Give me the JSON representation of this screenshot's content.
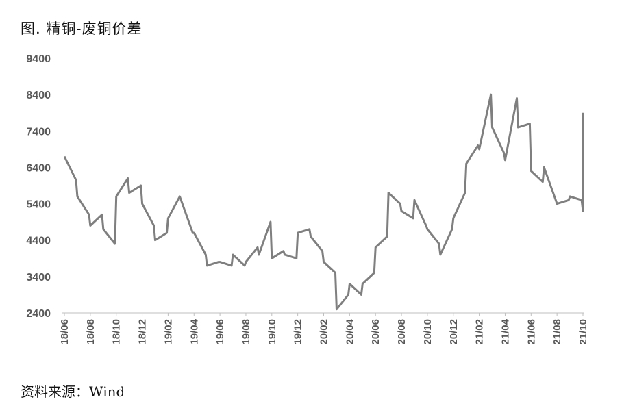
{
  "header": {
    "title": "图. 精铜-废铜价差"
  },
  "footer": {
    "source": "资料来源：Wind"
  },
  "chart_data": {
    "type": "line",
    "title": "图. 精铜-废铜价差",
    "xlabel": "",
    "ylabel": "",
    "ylim": [
      2400,
      9400
    ],
    "yticks": [
      2400,
      3400,
      4400,
      5400,
      6400,
      7400,
      8400,
      9400
    ],
    "xticks": [
      "18/06",
      "18/08",
      "18/10",
      "18/12",
      "19/02",
      "19/04",
      "19/06",
      "19/08",
      "19/10",
      "19/12",
      "20/02",
      "20/04",
      "20/06",
      "20/08",
      "20/10",
      "20/12",
      "21/02",
      "21/04",
      "21/06",
      "21/08",
      "21/10"
    ],
    "grid": false,
    "legend": "none",
    "line_color": "#7f7f7f",
    "series": [
      {
        "x": [
          "18/06",
          "18/06",
          "18/07",
          "18/07",
          "18/08",
          "18/08",
          "18/09",
          "18/09",
          "18/10",
          "18/10",
          "18/11",
          "18/11",
          "18/12",
          "18/12",
          "19/01",
          "19/01",
          "19/02",
          "19/02",
          "19/03",
          "19/03",
          "19/04",
          "19/04",
          "19/05",
          "19/05",
          "19/06",
          "19/06",
          "19/07",
          "19/07",
          "19/08",
          "19/08",
          "19/09",
          "19/09",
          "19/10",
          "19/10",
          "19/11",
          "19/11",
          "19/12",
          "19/12",
          "20/01",
          "20/01",
          "20/02",
          "20/02",
          "20/03",
          "20/03",
          "20/04",
          "20/04",
          "20/05",
          "20/05",
          "20/06",
          "20/06",
          "20/07",
          "20/07",
          "20/08",
          "20/08",
          "20/09",
          "20/09",
          "20/10",
          "20/10",
          "20/11",
          "20/11",
          "20/12",
          "20/12",
          "21/01",
          "21/01",
          "21/02",
          "21/02",
          "21/03",
          "21/03",
          "21/04",
          "21/04",
          "21/05",
          "21/05",
          "21/06",
          "21/06",
          "21/07",
          "21/07",
          "21/08",
          "21/08",
          "21/09",
          "21/09",
          "21/10",
          "21/10"
        ],
        "values": [
          6700,
          6050,
          5600,
          5100,
          4800,
          5100,
          4700,
          4300,
          5600,
          6100,
          5700,
          5900,
          5400,
          4800,
          4400,
          4600,
          5000,
          5600,
          5500,
          4600,
          4600,
          4000,
          3700,
          3800,
          3800,
          3700,
          4000,
          3700,
          3800,
          4200,
          4000,
          4900,
          3900,
          4100,
          4000,
          3900,
          4600,
          4700,
          4500,
          4100,
          3800,
          3500,
          2500,
          2900,
          3200,
          2900,
          3200,
          3500,
          4200,
          4500,
          5700,
          5400,
          5200,
          5000,
          5500,
          4800,
          4700,
          4300,
          4000,
          4700,
          5000,
          5700,
          6500,
          7000,
          6900,
          8400,
          7500,
          6800,
          6600,
          8300,
          7500,
          7600,
          6300,
          6000,
          6400,
          5500,
          5400,
          5500,
          5600,
          5500,
          5200,
          7900
        ]
      }
    ]
  }
}
